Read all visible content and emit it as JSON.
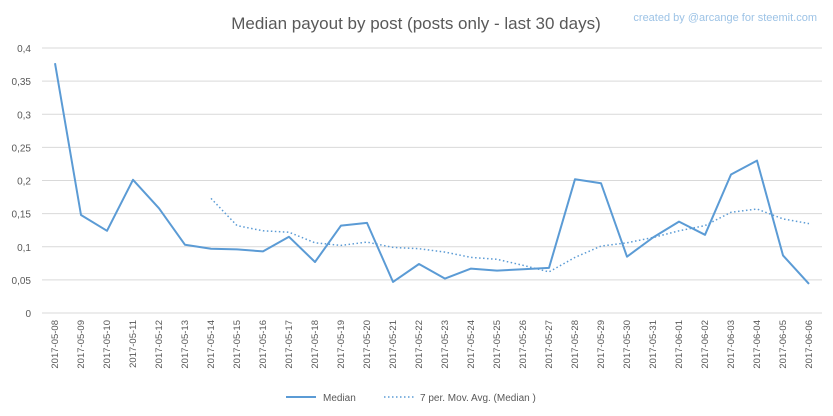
{
  "chart_data": {
    "type": "line",
    "title": "Median payout by post (posts only - last 30 days)",
    "watermark": "created by @arcange for steemit.com",
    "xlabel": "",
    "ylabel": "",
    "ylim": [
      0,
      0.4
    ],
    "yticks": [
      "0",
      "0,05",
      "0,1",
      "0,15",
      "0,2",
      "0,25",
      "0,3",
      "0,35",
      "0,4"
    ],
    "grid": true,
    "legend_position": "bottom",
    "colors": {
      "line": "#5b9bd5",
      "grid": "#d9d9d9",
      "text": "#595959",
      "watermark": "#9dc3e6"
    },
    "x": [
      "2017-05-08",
      "2017-05-09",
      "2017-05-10",
      "2017-05-11",
      "2017-05-12",
      "2017-05-13",
      "2017-05-14",
      "2017-05-15",
      "2017-05-16",
      "2017-05-17",
      "2017-05-18",
      "2017-05-19",
      "2017-05-20",
      "2017-05-21",
      "2017-05-22",
      "2017-05-23",
      "2017-05-24",
      "2017-05-25",
      "2017-05-26",
      "2017-05-27",
      "2017-05-28",
      "2017-05-29",
      "2017-05-30",
      "2017-05-31",
      "2017-06-01",
      "2017-06-02",
      "2017-06-03",
      "2017-06-04",
      "2017-06-05",
      "2017-06-06"
    ],
    "series": [
      {
        "name": "Median",
        "style": "solid",
        "values": [
          0.377,
          0.148,
          0.124,
          0.201,
          0.158,
          0.103,
          0.097,
          0.096,
          0.093,
          0.115,
          0.077,
          0.132,
          0.136,
          0.047,
          0.074,
          0.052,
          0.067,
          0.064,
          0.066,
          0.068,
          0.202,
          0.196,
          0.085,
          0.114,
          0.138,
          0.118,
          0.209,
          0.23,
          0.087,
          0.044
        ]
      },
      {
        "name": "7 per. Mov. Avg. (Median )",
        "style": "dotted",
        "values": [
          null,
          null,
          null,
          null,
          null,
          null,
          0.173,
          0.132,
          0.124,
          0.122,
          0.106,
          0.102,
          0.107,
          0.099,
          0.097,
          0.092,
          0.084,
          0.081,
          0.072,
          0.062,
          0.084,
          0.101,
          0.106,
          0.114,
          0.124,
          0.132,
          0.152,
          0.157,
          0.142,
          0.135
        ]
      }
    ]
  }
}
